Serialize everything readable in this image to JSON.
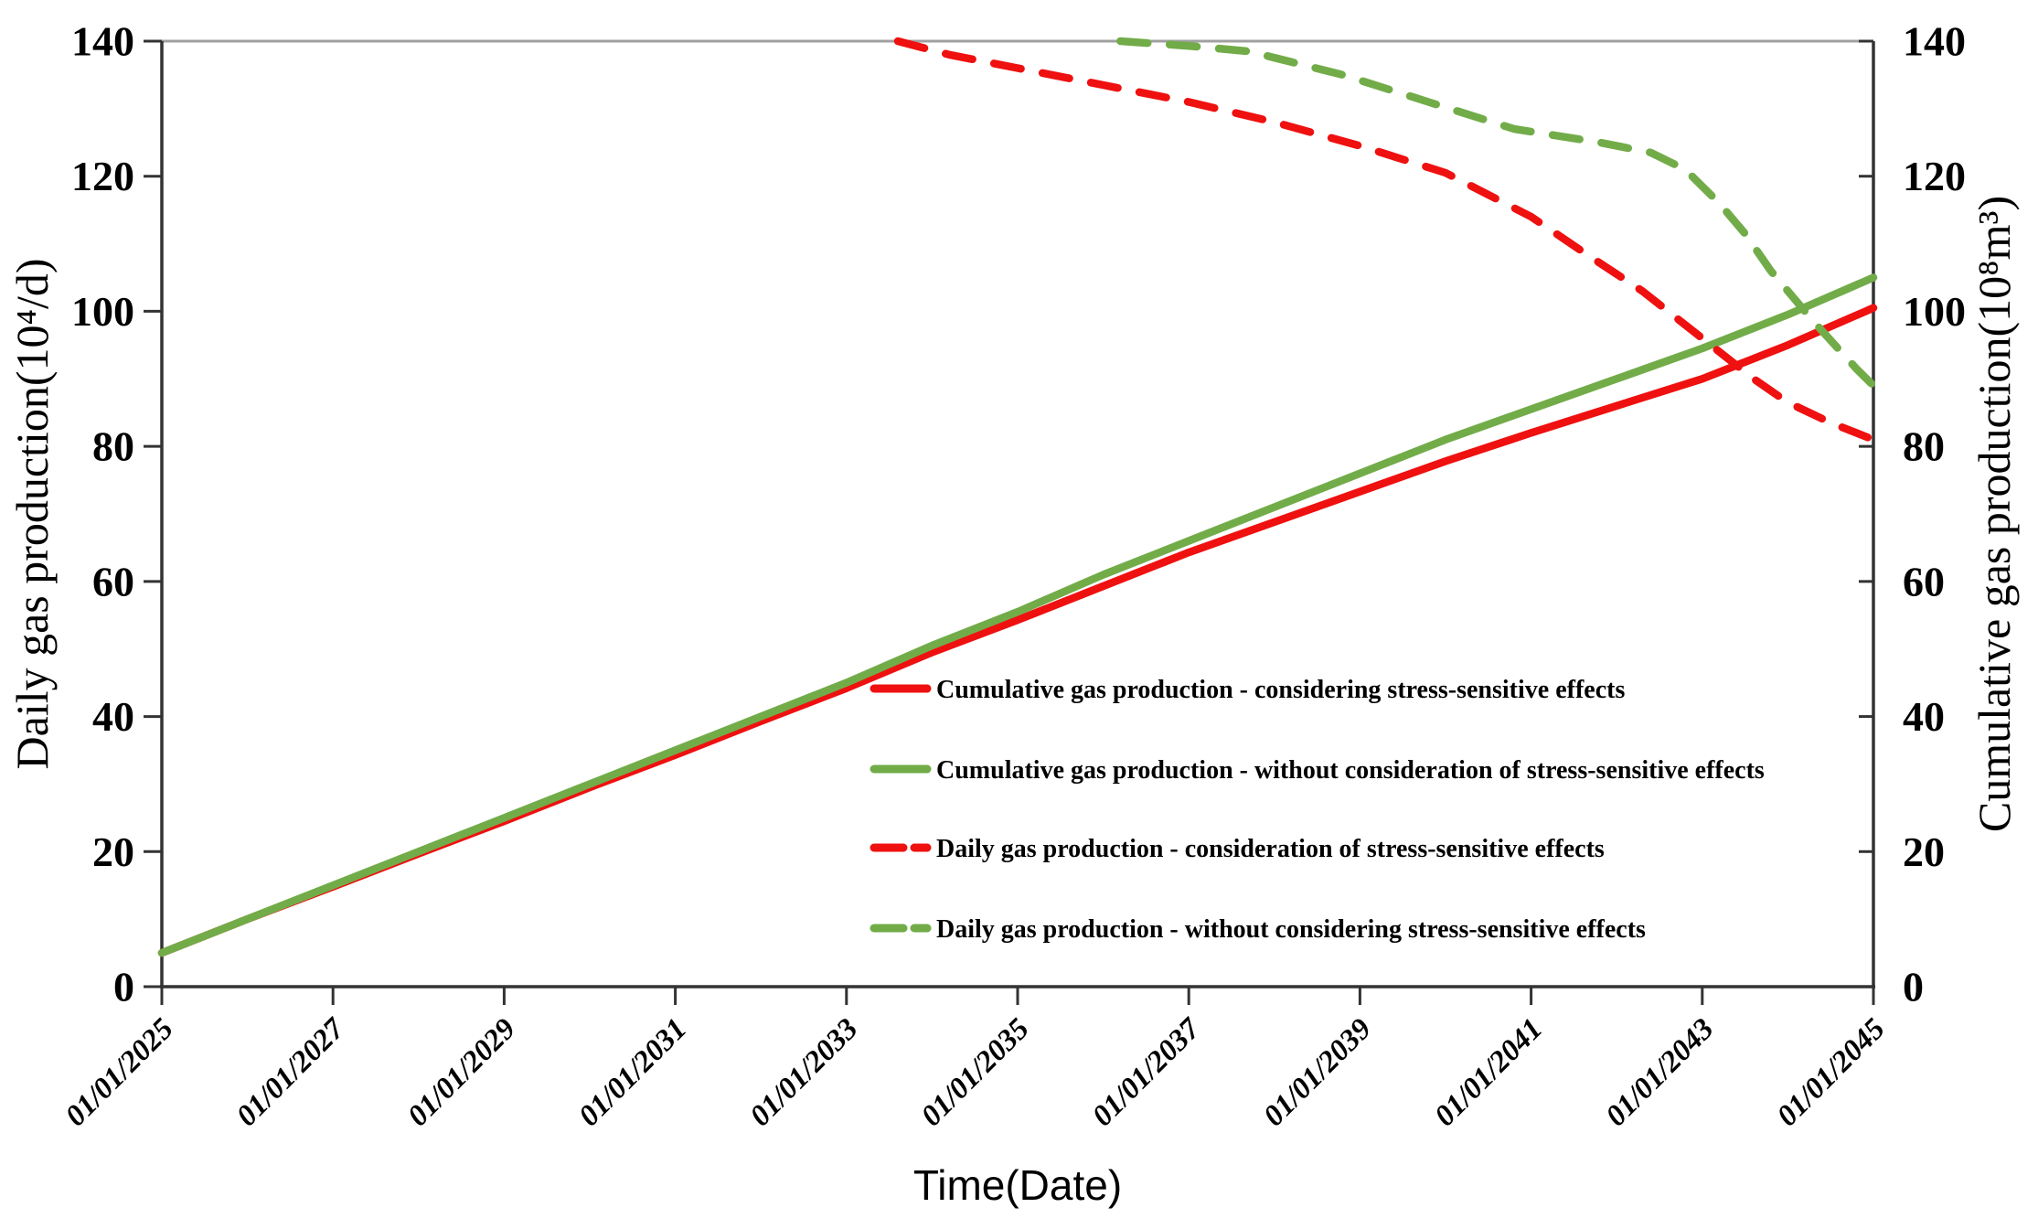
{
  "chart_data": {
    "type": "line",
    "title": "",
    "x_axis": {
      "label": "Time(Date)",
      "range_years": [
        2025,
        2045
      ],
      "tick_labels": [
        "01/01/2025",
        "01/01/2027",
        "01/01/2029",
        "01/01/2031",
        "01/01/2033",
        "01/01/2035",
        "01/01/2037",
        "01/01/2039",
        "01/01/2041",
        "01/01/2043",
        "01/01/2045"
      ],
      "tick_years": [
        2025,
        2027,
        2029,
        2031,
        2033,
        2035,
        2037,
        2039,
        2041,
        2043,
        2045
      ]
    },
    "y_left": {
      "label": "Daily gas production(10⁴/d)",
      "ticks": [
        140,
        120,
        100,
        80,
        60,
        40,
        20,
        0
      ],
      "range": [
        0,
        140
      ]
    },
    "y_right": {
      "label": "Cumulative gas production(10⁸m³)",
      "ticks": [
        140,
        120,
        100,
        80,
        60,
        40,
        20,
        0
      ],
      "range": [
        0,
        140
      ]
    },
    "style": {
      "red": "#ef1010",
      "green": "#72ac49",
      "axis_color": "#333333",
      "top_border_color": "#a0a0a0",
      "background": "#ffffff"
    },
    "legend_position": "inside-center-right",
    "series": [
      {
        "id": "cumulative-considering",
        "name": "Cumulative gas production - considering stress-sensitive effects",
        "axis": "right",
        "style": "solid",
        "color": "#ef1010",
        "points": [
          [
            2025,
            5
          ],
          [
            2026,
            10
          ],
          [
            2027,
            14.8
          ],
          [
            2028,
            19.7
          ],
          [
            2029,
            24.5
          ],
          [
            2030,
            29.5
          ],
          [
            2031,
            34.3
          ],
          [
            2032,
            39.3
          ],
          [
            2033,
            44.2
          ],
          [
            2034,
            49.5
          ],
          [
            2035,
            54.3
          ],
          [
            2036,
            59.3
          ],
          [
            2037,
            64.3
          ],
          [
            2038,
            68.8
          ],
          [
            2039,
            73.3
          ],
          [
            2040,
            77.8
          ],
          [
            2041,
            82
          ],
          [
            2042,
            86
          ],
          [
            2043,
            90
          ],
          [
            2044,
            95
          ],
          [
            2045,
            100.5
          ]
        ]
      },
      {
        "id": "cumulative-without",
        "name": "Cumulative gas production - without consideration of stress-sensitive effects",
        "axis": "right",
        "style": "solid",
        "color": "#72ac49",
        "points": [
          [
            2025,
            5
          ],
          [
            2026,
            10
          ],
          [
            2027,
            15
          ],
          [
            2028,
            20
          ],
          [
            2029,
            25
          ],
          [
            2030,
            30
          ],
          [
            2031,
            35
          ],
          [
            2032,
            40
          ],
          [
            2033,
            45
          ],
          [
            2034,
            50.5
          ],
          [
            2035,
            55.5
          ],
          [
            2036,
            61
          ],
          [
            2037,
            66
          ],
          [
            2038,
            71
          ],
          [
            2039,
            76
          ],
          [
            2040,
            81
          ],
          [
            2041,
            85.5
          ],
          [
            2042,
            90
          ],
          [
            2043,
            94.5
          ],
          [
            2044,
            99.5
          ],
          [
            2045,
            105
          ]
        ]
      },
      {
        "id": "daily-considering",
        "name": "Daily gas production - consideration of stress-sensitive effects",
        "axis": "left",
        "style": "dashed",
        "color": "#ef1010",
        "points": [
          [
            2033.6,
            140
          ],
          [
            2034.2,
            138
          ],
          [
            2035,
            136
          ],
          [
            2036,
            133.5
          ],
          [
            2037,
            131
          ],
          [
            2038,
            128
          ],
          [
            2039,
            124.5
          ],
          [
            2040,
            120.5
          ],
          [
            2041,
            114
          ],
          [
            2041.7,
            108
          ],
          [
            2042.3,
            103
          ],
          [
            2043,
            96
          ],
          [
            2043.6,
            90
          ],
          [
            2044,
            86.5
          ],
          [
            2044.5,
            83.5
          ],
          [
            2045,
            81
          ]
        ]
      },
      {
        "id": "daily-without",
        "name": "Daily gas production - without considering stress-sensitive effects",
        "axis": "left",
        "style": "dashed",
        "color": "#72ac49",
        "points": [
          [
            2036.2,
            140
          ],
          [
            2037,
            139.3
          ],
          [
            2037.7,
            138.5
          ],
          [
            2038.8,
            135
          ],
          [
            2039.8,
            131
          ],
          [
            2040.8,
            127
          ],
          [
            2041.8,
            125
          ],
          [
            2042.4,
            123.5
          ],
          [
            2042.8,
            121
          ],
          [
            2043.2,
            116
          ],
          [
            2043.5,
            111.5
          ],
          [
            2043.8,
            106
          ],
          [
            2044.3,
            98.5
          ],
          [
            2044.8,
            91.5
          ],
          [
            2045,
            89
          ]
        ]
      }
    ]
  }
}
